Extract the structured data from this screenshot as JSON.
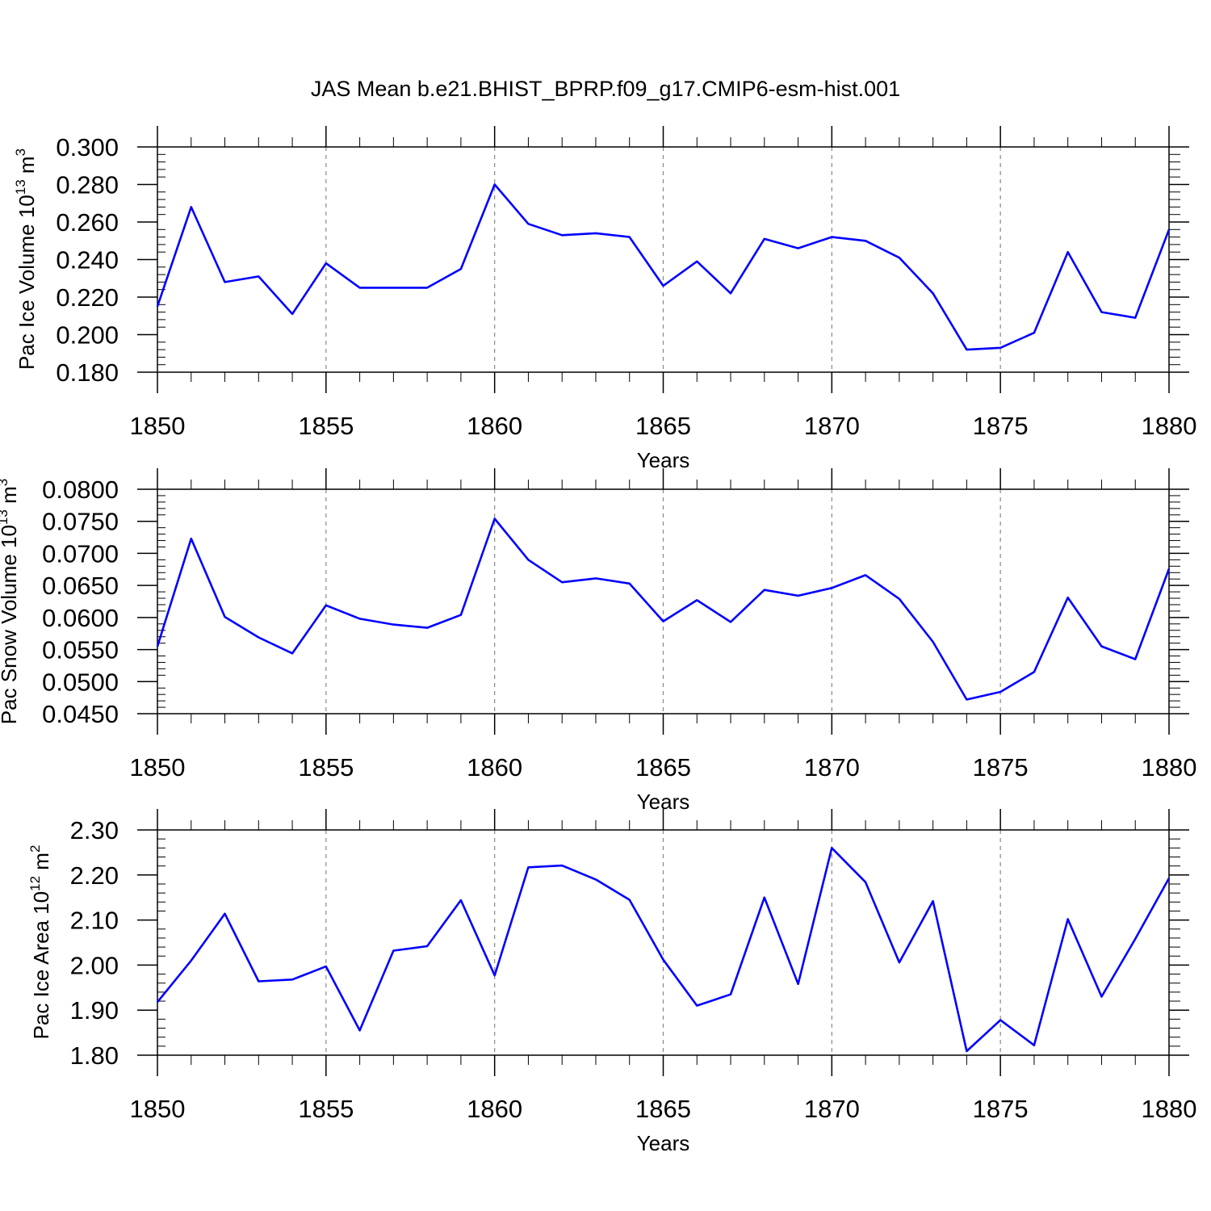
{
  "chart_data": {
    "title": "JAS Mean b.e21.BHIST_BPRP.f09_g17.CMIP6-esm-hist.001",
    "line_color": "#0000ff",
    "panels": [
      {
        "type": "line",
        "ylabel": {
          "text": "Pac Ice Volume 10",
          "exponent": "13",
          "unit": " m",
          "unit_exponent": "3"
        },
        "xlabel": "Years",
        "xlim": [
          1850,
          1880
        ],
        "ylim": [
          0.18,
          0.3
        ],
        "yticks": [
          "0.180",
          "0.200",
          "0.220",
          "0.240",
          "0.260",
          "0.280",
          "0.300"
        ],
        "xticks": [
          "1850",
          "1855",
          "1860",
          "1865",
          "1870",
          "1875",
          "1880"
        ],
        "x": [
          1850,
          1851,
          1852,
          1853,
          1854,
          1855,
          1856,
          1857,
          1858,
          1859,
          1860,
          1861,
          1862,
          1863,
          1864,
          1865,
          1866,
          1867,
          1868,
          1869,
          1870,
          1871,
          1872,
          1873,
          1874,
          1875,
          1876,
          1877,
          1878,
          1879,
          1880
        ],
        "values": [
          0.215,
          0.268,
          0.228,
          0.231,
          0.211,
          0.238,
          0.225,
          0.225,
          0.225,
          0.235,
          0.28,
          0.259,
          0.253,
          0.254,
          0.252,
          0.226,
          0.239,
          0.222,
          0.251,
          0.246,
          0.252,
          0.25,
          0.241,
          0.222,
          0.192,
          0.193,
          0.201,
          0.244,
          0.212,
          0.209,
          0.256
        ]
      },
      {
        "type": "line",
        "ylabel": {
          "text": "Pac Snow Volume 10",
          "exponent": "13",
          "unit": " m",
          "unit_exponent": "3"
        },
        "xlabel": "Years",
        "xlim": [
          1850,
          1880
        ],
        "ylim": [
          0.045,
          0.08
        ],
        "yticks": [
          "0.0450",
          "0.0500",
          "0.0550",
          "0.0600",
          "0.0650",
          "0.0700",
          "0.0750",
          "0.0800"
        ],
        "xticks": [
          "1850",
          "1855",
          "1860",
          "1865",
          "1870",
          "1875",
          "1880"
        ],
        "x": [
          1850,
          1851,
          1852,
          1853,
          1854,
          1855,
          1856,
          1857,
          1858,
          1859,
          1860,
          1861,
          1862,
          1863,
          1864,
          1865,
          1866,
          1867,
          1868,
          1869,
          1870,
          1871,
          1872,
          1873,
          1874,
          1875,
          1876,
          1877,
          1878,
          1879,
          1880
        ],
        "values": [
          0.0555,
          0.0723,
          0.0601,
          0.0569,
          0.0544,
          0.0619,
          0.0598,
          0.0589,
          0.0584,
          0.0604,
          0.0754,
          0.069,
          0.0655,
          0.0661,
          0.0653,
          0.0594,
          0.0627,
          0.0593,
          0.0643,
          0.0634,
          0.0646,
          0.0666,
          0.0629,
          0.0562,
          0.0472,
          0.0484,
          0.0515,
          0.0631,
          0.0555,
          0.0535,
          0.0676
        ]
      },
      {
        "type": "line",
        "ylabel": {
          "text": "Pac Ice Area 10",
          "exponent": "12",
          "unit": " m",
          "unit_exponent": "2"
        },
        "xlabel": "Years",
        "xlim": [
          1850,
          1880
        ],
        "ylim": [
          1.8,
          2.3
        ],
        "yticks": [
          "1.80",
          "1.90",
          "2.00",
          "2.10",
          "2.20",
          "2.30"
        ],
        "xticks": [
          "1850",
          "1855",
          "1860",
          "1865",
          "1870",
          "1875",
          "1880"
        ],
        "x": [
          1850,
          1851,
          1852,
          1853,
          1854,
          1855,
          1856,
          1857,
          1858,
          1859,
          1860,
          1861,
          1862,
          1863,
          1864,
          1865,
          1866,
          1867,
          1868,
          1869,
          1870,
          1871,
          1872,
          1873,
          1874,
          1875,
          1876,
          1877,
          1878,
          1879,
          1880
        ],
        "values": [
          1.918,
          2.01,
          2.114,
          1.964,
          1.968,
          1.997,
          1.855,
          2.032,
          2.042,
          2.144,
          1.977,
          2.217,
          2.221,
          2.19,
          2.145,
          2.012,
          1.91,
          1.935,
          2.15,
          1.958,
          2.26,
          2.184,
          2.006,
          2.142,
          1.809,
          1.878,
          1.822,
          2.102,
          1.93,
          2.058,
          2.193
        ]
      }
    ]
  }
}
